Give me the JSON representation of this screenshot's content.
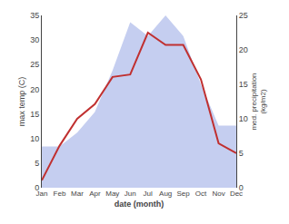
{
  "chart_data": {
    "type": "line",
    "categories": [
      "Jan",
      "Feb",
      "Mar",
      "Apr",
      "May",
      "Jun",
      "Jul",
      "Aug",
      "Sep",
      "Oct",
      "Nov",
      "Dec"
    ],
    "series": [
      {
        "type": "area",
        "color": "#c5cef0",
        "axis": "y2",
        "values": [
          6.0,
          6.0,
          8.0,
          11.0,
          17.0,
          24.0,
          22.0,
          25.0,
          22.0,
          15.0,
          9.0,
          9.0
        ]
      },
      {
        "type": "line",
        "color": "#c03030",
        "values": [
          1.5,
          8.5,
          14.0,
          17.0,
          22.5,
          23.0,
          31.5,
          29.0,
          29.0,
          22.0,
          9.0,
          7.0
        ]
      }
    ],
    "xlabel": "date (month)",
    "ylabel": "max temp (C)",
    "y2label": "med. precipitation\n(kg/m2)",
    "ylim": [
      0,
      35
    ],
    "yticks": [
      0,
      5,
      10,
      15,
      20,
      25,
      30,
      35
    ],
    "y2lim": [
      0,
      25
    ],
    "y2ticks": [
      0,
      5,
      10,
      15,
      20,
      25
    ],
    "grid": false
  }
}
